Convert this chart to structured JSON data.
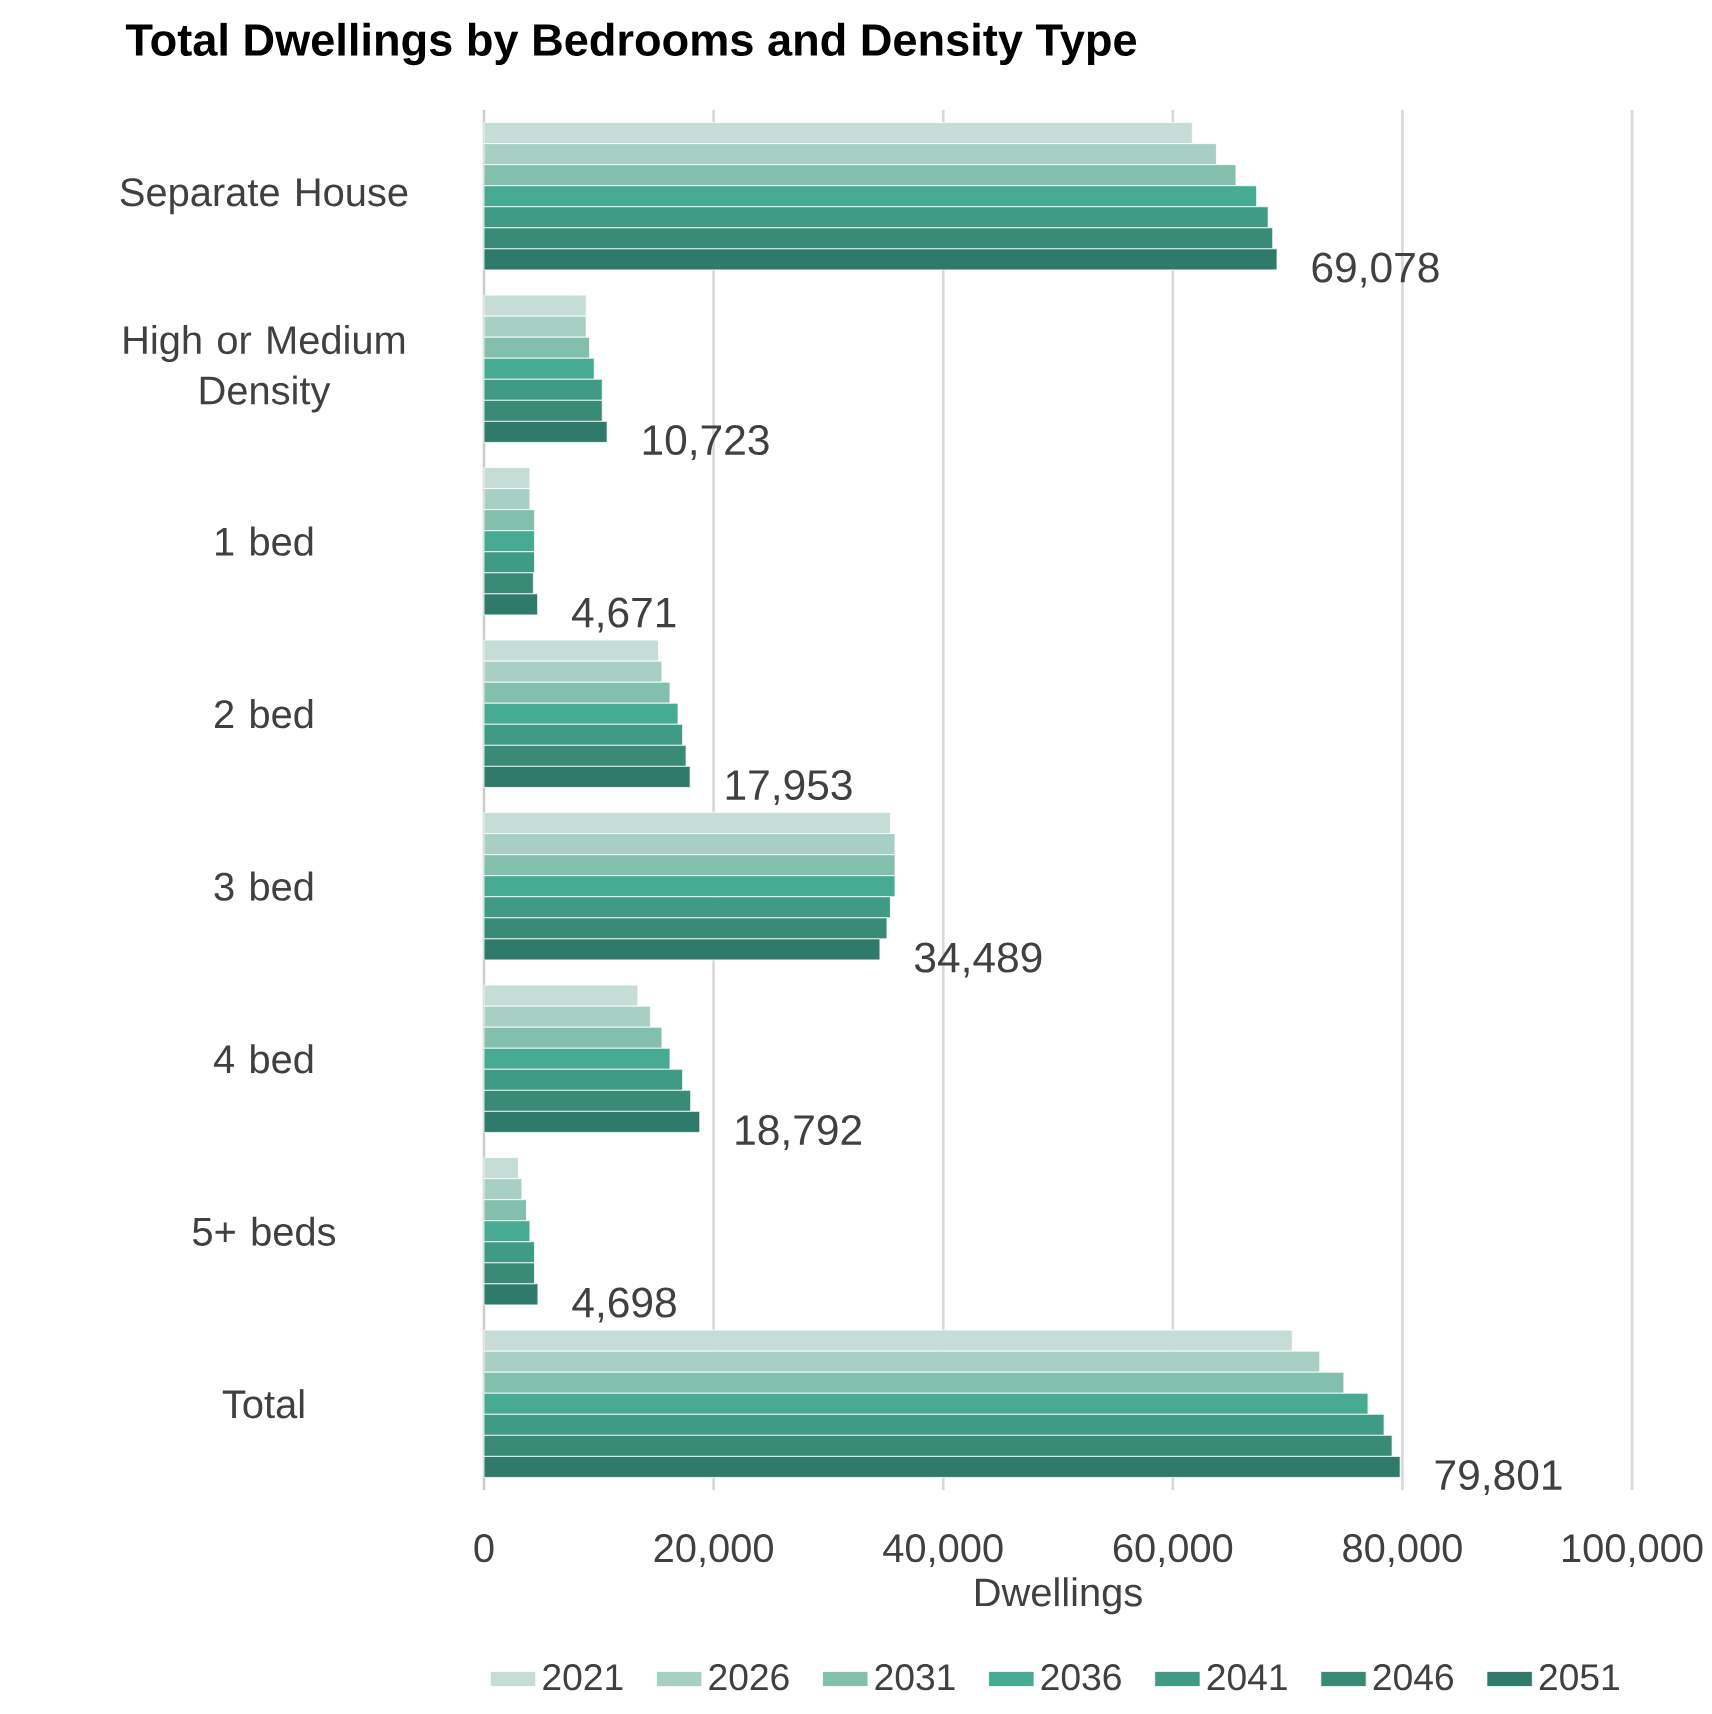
{
  "chart_data": {
    "type": "bar",
    "orientation": "horizontal",
    "title": "Total Dwellings by Bedrooms and Density Type",
    "xlabel": "Dwellings",
    "categories": [
      "Separate House",
      "High or Medium Density",
      "1 bed",
      "2 bed",
      "3 bed",
      "4 bed",
      "5+ beds",
      "Total"
    ],
    "series": [
      {
        "name": "2021",
        "color": "#c5ddd6",
        "values": [
          61700,
          8900,
          4000,
          15200,
          35400,
          13400,
          3000,
          70400
        ]
      },
      {
        "name": "2026",
        "color": "#a8cfc3",
        "values": [
          63800,
          8900,
          4000,
          15500,
          35800,
          14500,
          3300,
          72800
        ]
      },
      {
        "name": "2031",
        "color": "#82bfad",
        "values": [
          65500,
          9200,
          4400,
          16200,
          35800,
          15500,
          3700,
          74900
        ]
      },
      {
        "name": "2036",
        "color": "#47ab94",
        "values": [
          67300,
          9600,
          4400,
          16900,
          35800,
          16200,
          4000,
          77000
        ]
      },
      {
        "name": "2041",
        "color": "#3f9b85",
        "values": [
          68300,
          10300,
          4400,
          17300,
          35400,
          17300,
          4400,
          78400
        ]
      },
      {
        "name": "2046",
        "color": "#3a8a78",
        "values": [
          68700,
          10300,
          4300,
          17600,
          35100,
          18000,
          4400,
          79100
        ]
      },
      {
        "name": "2051",
        "color": "#2f7a6a",
        "values": [
          69078,
          10723,
          4671,
          17953,
          34489,
          18792,
          4698,
          79801
        ],
        "value_labels": [
          "69,078",
          "10,723",
          "4,671",
          "17,953",
          "34,489",
          "18,792",
          "4,698",
          "79,801"
        ]
      }
    ],
    "xlim": [
      0,
      100000
    ],
    "xticks": [
      0,
      {
        "value": 20000,
        "label": "20,000"
      },
      {
        "value": 40000,
        "label": "40,000"
      },
      {
        "value": 60000,
        "label": "60,000"
      },
      {
        "value": 80000,
        "label": "80,000"
      },
      {
        "value": 100000,
        "label": "100,000"
      }
    ],
    "grid": "x",
    "legend": "bottom"
  }
}
